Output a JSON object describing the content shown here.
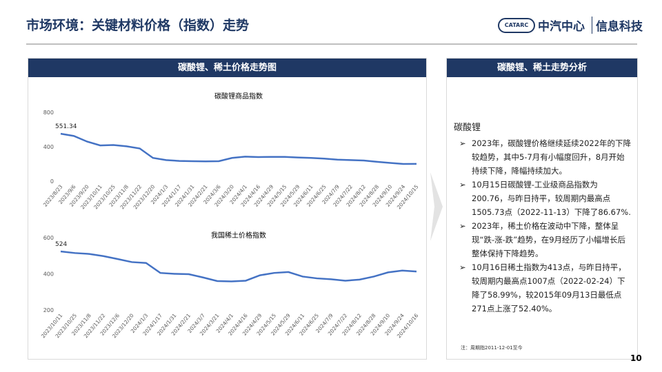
{
  "header": {
    "title": "市场环境：关键材料价格（指数）走势",
    "logo": "CATARC",
    "brand": "中汽中心",
    "brand_sub": "信息科技"
  },
  "left_panel": {
    "title": "碳酸锂、稀土价格走势图"
  },
  "chart_data": [
    {
      "type": "line",
      "title": "碳酸锂商品指数",
      "categories": [
        "2023/8/23",
        "2023/9/6",
        "2023/9/20",
        "2023/10/11",
        "2023/10/25",
        "2023/11/8",
        "2023/11/22",
        "2023/12/20",
        "2024/1/3",
        "2024/1/17",
        "2024/1/31",
        "2024/2/21",
        "2024/3/6",
        "2024/3/20",
        "2024/4/1",
        "2024/4/16",
        "2024/4/29",
        "2024/5/15",
        "2024/5/29",
        "2024/6/11",
        "2024/6/25",
        "2024/7/9",
        "2024/7/22",
        "2024/8/12",
        "2024/8/28",
        "2024/9/10",
        "2024/9/24",
        "2024/10/15"
      ],
      "values": [
        551.34,
        525,
        460,
        415,
        420,
        405,
        380,
        270,
        245,
        235,
        232,
        230,
        232,
        270,
        285,
        280,
        282,
        282,
        275,
        270,
        262,
        250,
        245,
        240,
        225,
        212,
        200,
        200.76
      ],
      "color": "#4472c4",
      "ylim": [
        0,
        800
      ],
      "yticks": [
        0,
        400,
        800
      ],
      "grid": false
    },
    {
      "type": "line",
      "title": "我国稀土价格指数",
      "categories": [
        "2023/10/11",
        "2023/10/25",
        "2023/11/8",
        "2023/11/22",
        "2023/12/6",
        "2023/12/20",
        "2024/1/3",
        "2024/1/17",
        "2024/1/31",
        "2024/2/21",
        "2024/3/7",
        "2024/3/21",
        "2024/4/1",
        "2024/4/16",
        "2024/4/29",
        "2024/5/15",
        "2024/5/29",
        "2024/6/11",
        "2024/6/25",
        "2024/7/9",
        "2024/7/22",
        "2024/8/12",
        "2024/8/28",
        "2024/9/10",
        "2024/9/24",
        "2024/10/16"
      ],
      "values": [
        524,
        515,
        510,
        498,
        482,
        465,
        460,
        405,
        400,
        398,
        380,
        360,
        358,
        362,
        392,
        405,
        410,
        385,
        375,
        370,
        362,
        368,
        385,
        408,
        418,
        413
      ],
      "color": "#4472c4",
      "ylim": [
        200,
        600
      ],
      "yticks": [
        200,
        400,
        600
      ],
      "grid": false
    }
  ],
  "right_panel": {
    "title": "碳酸锂、稀土走势分析",
    "subtitle": "碳酸锂",
    "bullets": [
      "2023年，碳酸锂价格继续延续2022年的下降较趋势，其中5-7月有小幅度回升，8月开始持续下降，降幅持续加大。",
      "10月15日碳酸锂-工业级商品指数为200.76，与昨日持平，较周期内最高点1505.73点（2022-11-13）下降了86.67%.",
      "2023年，稀土价格在波动中下降，整体呈现“跌-涨-跌”趋势，在9月经历了小幅增长后整体保持下降趋势。",
      "10月16日稀土指数为413点，与昨日持平，较周期内最高点1007点（2022-02-24）下降了58.99%，较2015年09月13日最低点271点上涨了52.40%。"
    ],
    "note": "注：周期指2011-12-01至今"
  },
  "page_number": "10"
}
